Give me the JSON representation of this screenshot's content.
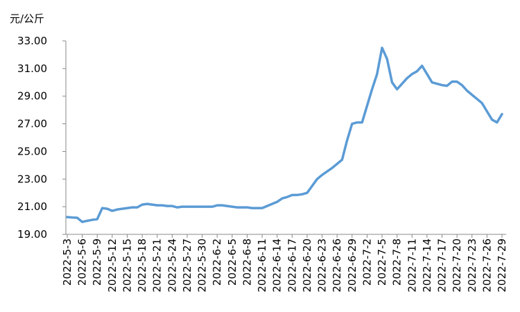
{
  "chart_data": {
    "type": "line",
    "y_label": "元/公斤",
    "categories": [
      "2022-5-3",
      null,
      null,
      "2022-5-6",
      null,
      null,
      "2022-5-9",
      null,
      null,
      "2022-5-12",
      null,
      null,
      "2022-5-15",
      null,
      null,
      "2022-5-18",
      null,
      null,
      "2022-5-21",
      null,
      null,
      "2022-5-24",
      null,
      null,
      "2022-5-27",
      null,
      null,
      "2022-5-30",
      null,
      null,
      "2022-6-2",
      null,
      null,
      "2022-6-5",
      null,
      null,
      "2022-6-8",
      null,
      null,
      "2022-6-11",
      null,
      null,
      "2022-6-14",
      null,
      null,
      "2022-6-17",
      null,
      null,
      "2022-6-20",
      null,
      null,
      "2022-6-23",
      null,
      null,
      "2022-6-26",
      null,
      null,
      "2022-6-29",
      null,
      null,
      "2022-7-2",
      null,
      null,
      "2022-7-5",
      null,
      null,
      "2022-7-8",
      null,
      null,
      "2022-7-11",
      null,
      null,
      "2022-7-14",
      null,
      null,
      "2022-7-17",
      null,
      null,
      "2022-7-20",
      null,
      null,
      "2022-7-23",
      null,
      null,
      "2022-7-26",
      null,
      null,
      "2022-7-29"
    ],
    "values": [
      20.25,
      20.22,
      20.2,
      19.9,
      19.98,
      20.05,
      20.1,
      20.9,
      20.85,
      20.7,
      20.8,
      20.85,
      20.9,
      20.95,
      20.95,
      21.15,
      21.2,
      21.15,
      21.1,
      21.1,
      21.05,
      21.05,
      20.95,
      21.0,
      21.0,
      21.0,
      21.0,
      21.0,
      21.0,
      21.0,
      21.1,
      21.1,
      21.05,
      21.0,
      20.95,
      20.95,
      20.95,
      20.9,
      20.9,
      20.9,
      21.05,
      21.2,
      21.35,
      21.6,
      21.7,
      21.85,
      21.85,
      21.9,
      22.0,
      22.5,
      23.0,
      23.3,
      23.55,
      23.8,
      24.1,
      24.4,
      25.8,
      27.0,
      27.1,
      27.1,
      28.3,
      29.5,
      30.6,
      32.5,
      31.7,
      30.0,
      29.5,
      29.9,
      30.3,
      30.6,
      30.8,
      31.2,
      30.6,
      30.0,
      29.9,
      29.8,
      29.75,
      30.05,
      30.05,
      29.8,
      29.4,
      29.1,
      28.8,
      28.5,
      27.9,
      27.3,
      27.1,
      27.7
    ],
    "color": "#5b9bd5",
    "ylim": [
      19,
      33
    ],
    "yticks": [
      {
        "value": 19,
        "label": "19.00"
      },
      {
        "value": 21,
        "label": "21.00"
      },
      {
        "value": 23,
        "label": "23.00"
      },
      {
        "value": 25,
        "label": "25.00"
      },
      {
        "value": 27,
        "label": "27.00"
      },
      {
        "value": 29,
        "label": "29.00"
      },
      {
        "value": 31,
        "label": "31.00"
      },
      {
        "value": 33,
        "label": "33.00"
      }
    ]
  }
}
